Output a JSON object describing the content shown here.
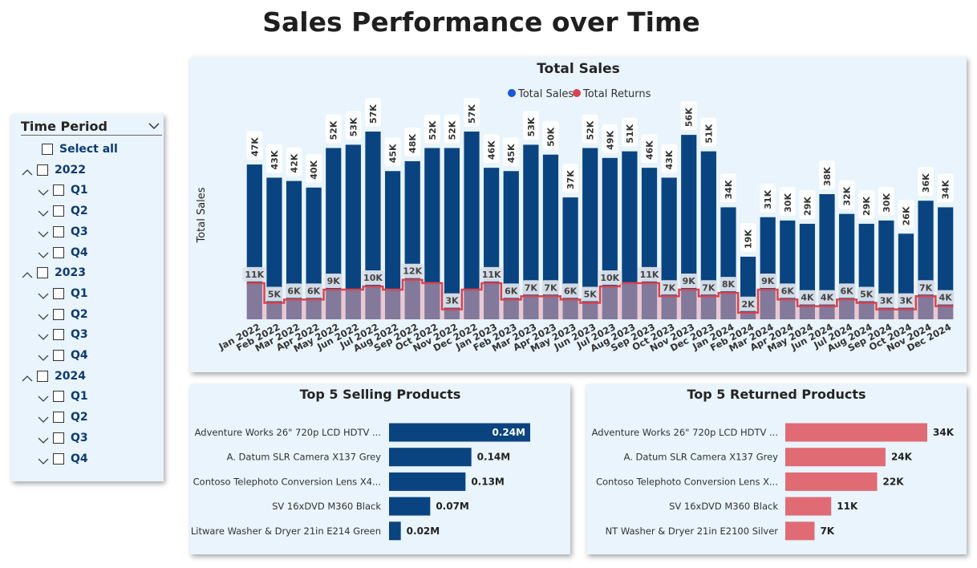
{
  "page": {
    "title": "Sales Performance over Time"
  },
  "slicer": {
    "title": "Time Period",
    "select_all": "Select all",
    "years": [
      {
        "label": "2022",
        "quarters": [
          "Q1",
          "Q2",
          "Q3",
          "Q4"
        ]
      },
      {
        "label": "2023",
        "quarters": [
          "Q1",
          "Q2",
          "Q3",
          "Q4"
        ]
      },
      {
        "label": "2024",
        "quarters": [
          "Q1",
          "Q2",
          "Q3",
          "Q4"
        ]
      }
    ]
  },
  "colors": {
    "sales": "#0a4480",
    "returns": "#d64550",
    "returns_fill": "#e8a6b0",
    "bar_returns": "#e06b74",
    "card_bg": "#e9f4fc",
    "legend_sales": "#1a57d9"
  },
  "chart_data": [
    {
      "type": "bar",
      "title": "Total Sales",
      "ylabel": "Total Sales",
      "legend": {
        "position": "top-center",
        "entries": [
          "Total Sales",
          "Total Returns"
        ]
      },
      "grid": false,
      "ylim": [
        0,
        57
      ],
      "categories": [
        "Jan 2022",
        "Feb 2022",
        "Mar 2022",
        "Apr 2022",
        "May 2022",
        "Jun 2022",
        "Jul 2022",
        "Aug 2022",
        "Sep 2022",
        "Oct 2022",
        "Nov 2022",
        "Dec 2022",
        "Jan 2023",
        "Feb 2023",
        "Mar 2023",
        "Apr 2023",
        "May 2023",
        "Jun 2023",
        "Jul 2023",
        "Aug 2023",
        "Sep 2023",
        "Oct 2023",
        "Nov 2023",
        "Dec 2023",
        "Jan 2024",
        "Feb 2024",
        "Mar 2024",
        "Apr 2024",
        "May 2024",
        "Jun 2024",
        "Jul 2024",
        "Aug 2024",
        "Sep 2024",
        "Oct 2024",
        "Nov 2024",
        "Dec 2024"
      ],
      "series": [
        {
          "name": "Total Sales",
          "type": "bar",
          "values": [
            47,
            43,
            42,
            40,
            52,
            53,
            57,
            45,
            48,
            52,
            52,
            57,
            46,
            45,
            53,
            50,
            37,
            52,
            49,
            51,
            46,
            43,
            56,
            51,
            34,
            19,
            31,
            30,
            29,
            38,
            32,
            29,
            30,
            26,
            36,
            34
          ],
          "labels": [
            "47K",
            "43K",
            "42K",
            "40K",
            "52K",
            "53K",
            "57K",
            "45K",
            "48K",
            "52K",
            "52K",
            "57K",
            "46K",
            "45K",
            "53K",
            "50K",
            "37K",
            "52K",
            "49K",
            "51K",
            "46K",
            "43K",
            "56K",
            "51K",
            "34K",
            "19K",
            "31K",
            "30K",
            "29K",
            "38K",
            "32K",
            "29K",
            "30K",
            "26K",
            "36K",
            "34K"
          ]
        },
        {
          "name": "Total Returns",
          "type": "step-area",
          "values": [
            11,
            5,
            6,
            6,
            9,
            9,
            10,
            9,
            12,
            11,
            3,
            9,
            11,
            6,
            7,
            7,
            6,
            5,
            10,
            11,
            11,
            7,
            9,
            7,
            8,
            2,
            9,
            6,
            4,
            4,
            6,
            5,
            3,
            3,
            7,
            4
          ],
          "labels": [
            "11K",
            "5K",
            "6K",
            "6K",
            "9K",
            "",
            "10K",
            "",
            "12K",
            "",
            "3K",
            "",
            "11K",
            "6K",
            "7K",
            "7K",
            "6K",
            "5K",
            "10K",
            "",
            "11K",
            "7K",
            "9K",
            "7K",
            "8K",
            "2K",
            "9K",
            "6K",
            "4K",
            "4K",
            "6K",
            "5K",
            "3K",
            "3K",
            "7K",
            "4K"
          ]
        }
      ]
    },
    {
      "type": "bar",
      "orientation": "horizontal",
      "title": "Top 5 Selling Products",
      "categories": [
        "Adventure Works 26\" 720p LCD HDTV ...",
        "A. Datum SLR Camera X137 Grey",
        "Contoso Telephoto Conversion Lens X4...",
        "SV 16xDVD M360 Black",
        "Litware Washer & Dryer 21in E214 Green"
      ],
      "values": [
        0.24,
        0.14,
        0.13,
        0.07,
        0.02
      ],
      "labels": [
        "0.24M",
        "0.14M",
        "0.13M",
        "0.07M",
        "0.02M"
      ],
      "units": "M"
    },
    {
      "type": "bar",
      "orientation": "horizontal",
      "title": "Top 5 Returned Products",
      "categories": [
        "Adventure Works 26\" 720p LCD HDTV ...",
        "A. Datum SLR Camera X137 Grey",
        "Contoso Telephoto Conversion Lens X...",
        "SV 16xDVD M360 Black",
        "NT Washer & Dryer 21in E2100 Silver"
      ],
      "values": [
        34,
        24,
        22,
        11,
        7
      ],
      "labels": [
        "34K",
        "24K",
        "22K",
        "11K",
        "7K"
      ],
      "units": "K"
    }
  ]
}
